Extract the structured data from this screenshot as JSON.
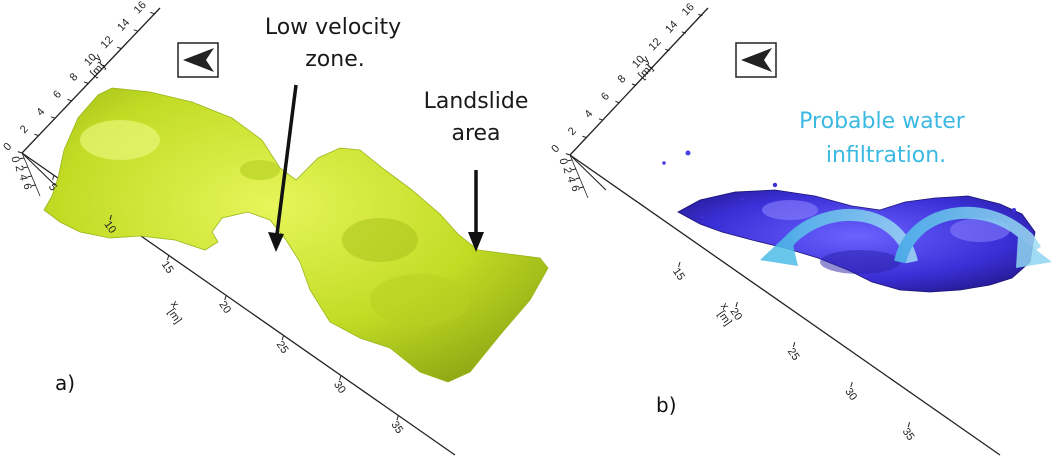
{
  "panel_a": {
    "label": "a)",
    "y_axis": {
      "ticks": [
        "0",
        "2",
        "4",
        "6",
        "8",
        "10",
        "12",
        "14",
        "16"
      ],
      "label": "y",
      "unit": "[m]"
    },
    "x_axis": {
      "ticks": [
        "5",
        "10",
        "15",
        "20",
        "25",
        "30",
        "35"
      ],
      "label": "x",
      "unit": "[m]"
    },
    "z_axis": {
      "ticks": [
        "0",
        "2",
        "4",
        "6"
      ],
      "label": "z",
      "unit": "[m]"
    },
    "annotation_low_velocity": [
      "Low velocity",
      "zone."
    ],
    "annotation_landslide": [
      "Landslide",
      "area"
    ],
    "surface_color": "#c6e02c"
  },
  "panel_b": {
    "label": "b)",
    "y_axis": {
      "ticks": [
        "0",
        "2",
        "4",
        "6",
        "8",
        "10",
        "12",
        "14",
        "16"
      ],
      "label": "y",
      "unit": "[m]"
    },
    "x_axis": {
      "ticks": [
        "15",
        "20",
        "25",
        "30",
        "35"
      ],
      "label": "x",
      "unit": "[m]"
    },
    "z_axis": {
      "ticks": [
        "0",
        "2",
        "4",
        "6"
      ],
      "label": "z",
      "unit": "[m]"
    },
    "annotation_water": [
      "Probable water",
      "infiltration."
    ],
    "surface_color": "#3a2fd6",
    "arrow_color": "#5fc7ea"
  }
}
